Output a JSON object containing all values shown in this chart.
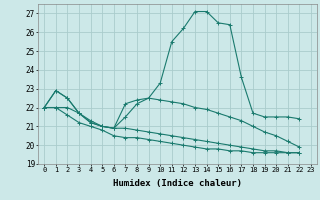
{
  "xlabel": "Humidex (Indice chaleur)",
  "background_color": "#cce8e8",
  "grid_color": "#aacccc",
  "line_color": "#1a7a6e",
  "ylim": [
    19,
    27.5
  ],
  "xlim": [
    -0.5,
    23.5
  ],
  "yticks": [
    19,
    20,
    21,
    22,
    23,
    24,
    25,
    26,
    27
  ],
  "xticks": [
    0,
    1,
    2,
    3,
    4,
    5,
    6,
    7,
    8,
    9,
    10,
    11,
    12,
    13,
    14,
    15,
    16,
    17,
    18,
    19,
    20,
    21,
    22,
    23
  ],
  "series": [
    [
      22.0,
      22.9,
      22.5,
      21.7,
      21.2,
      21.0,
      20.9,
      21.5,
      22.2,
      22.5,
      23.3,
      25.5,
      26.2,
      27.1,
      27.1,
      26.5,
      26.4,
      23.6,
      21.7,
      21.5,
      21.5,
      21.5,
      21.4
    ],
    [
      22.0,
      22.9,
      22.5,
      21.7,
      21.2,
      21.0,
      20.9,
      22.2,
      22.4,
      22.5,
      22.4,
      22.3,
      22.2,
      22.0,
      21.9,
      21.7,
      21.5,
      21.3,
      21.0,
      20.7,
      20.5,
      20.2,
      19.9
    ],
    [
      22.0,
      22.0,
      22.0,
      21.7,
      21.3,
      21.0,
      20.9,
      20.9,
      20.8,
      20.7,
      20.6,
      20.5,
      20.4,
      20.3,
      20.2,
      20.1,
      20.0,
      19.9,
      19.8,
      19.7,
      19.7,
      19.6,
      19.6
    ],
    [
      22.0,
      22.0,
      21.6,
      21.2,
      21.0,
      20.8,
      20.5,
      20.4,
      20.4,
      20.3,
      20.2,
      20.1,
      20.0,
      19.9,
      19.8,
      19.8,
      19.7,
      19.7,
      19.6,
      19.6,
      19.6,
      19.6,
      19.6
    ]
  ],
  "marker": "+"
}
